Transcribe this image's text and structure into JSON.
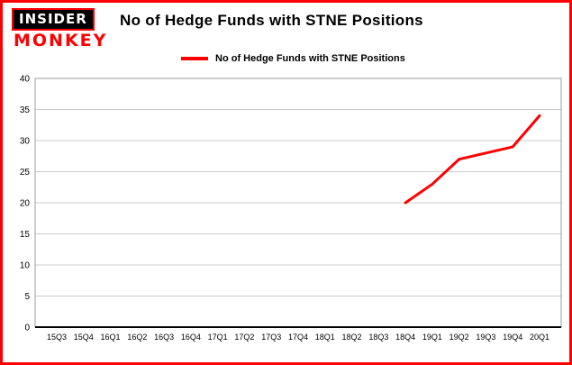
{
  "branding": {
    "line1": "INSIDER",
    "line2": "MONKEY"
  },
  "title": "No of Hedge Funds with STNE Positions",
  "legend": {
    "label": "No of Hedge Funds with STNE Positions",
    "color": "#ff0000"
  },
  "colors": {
    "accent": "#ff0000",
    "grid": "#cccccc",
    "plot_border": "#9e9e9e",
    "axis": "#000000",
    "text": "#000000"
  },
  "chart_data": {
    "type": "line",
    "title": "No of Hedge Funds with STNE Positions",
    "categories": [
      "15Q3",
      "15Q4",
      "16Q1",
      "16Q2",
      "16Q3",
      "16Q4",
      "17Q1",
      "17Q2",
      "17Q3",
      "17Q4",
      "18Q1",
      "18Q2",
      "18Q3",
      "18Q4",
      "19Q1",
      "19Q2",
      "19Q3",
      "19Q4",
      "20Q1"
    ],
    "series": [
      {
        "name": "No of Hedge Funds with STNE Positions",
        "color": "#ff0000",
        "values": [
          null,
          null,
          null,
          null,
          null,
          null,
          null,
          null,
          null,
          null,
          null,
          null,
          null,
          20,
          23,
          27,
          28,
          29,
          34
        ]
      }
    ],
    "ylim": [
      0,
      40
    ],
    "yticks": [
      0,
      5,
      10,
      15,
      20,
      25,
      30,
      35,
      40
    ],
    "grid": true,
    "legend_position": "top-center",
    "xlabel": "",
    "ylabel": ""
  }
}
